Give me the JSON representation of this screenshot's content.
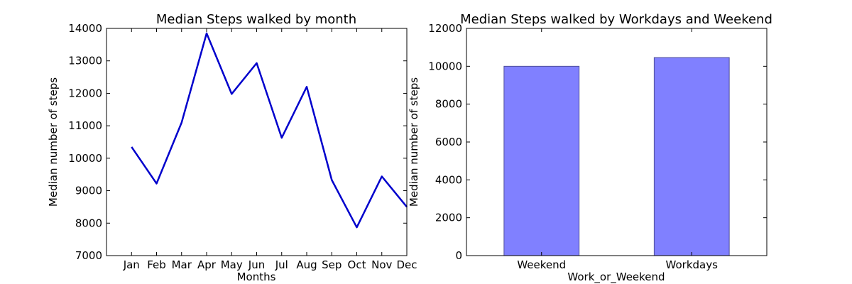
{
  "chart_data": [
    {
      "type": "line",
      "title": "Median Steps walked by month",
      "xlabel": "Months",
      "ylabel": "Median number of steps",
      "categories": [
        "Jan",
        "Feb",
        "Mar",
        "Apr",
        "May",
        "Jun",
        "Jul",
        "Aug",
        "Sep",
        "Oct",
        "Nov",
        "Dec"
      ],
      "series": [
        {
          "values": [
            10350,
            9220,
            11100,
            13850,
            11980,
            12930,
            10630,
            12200,
            9330,
            7870,
            9440,
            8500
          ],
          "color": "#0000cc"
        }
      ],
      "ylim": [
        7000,
        14000
      ],
      "yticks": [
        7000,
        8000,
        9000,
        10000,
        11000,
        12000,
        13000,
        14000
      ],
      "grid": false
    },
    {
      "type": "bar",
      "title": "Median Steps walked by Workdays and Weekend",
      "xlabel": "Work_or_Weekend",
      "ylabel": "Median number of steps",
      "categories": [
        "Weekend",
        "Workdays"
      ],
      "series": [
        {
          "values": [
            10000,
            10460
          ],
          "color": "#8080ff"
        }
      ],
      "ylim": [
        0,
        12000
      ],
      "yticks": [
        0,
        2000,
        4000,
        6000,
        8000,
        10000,
        12000
      ],
      "grid": false
    }
  ]
}
